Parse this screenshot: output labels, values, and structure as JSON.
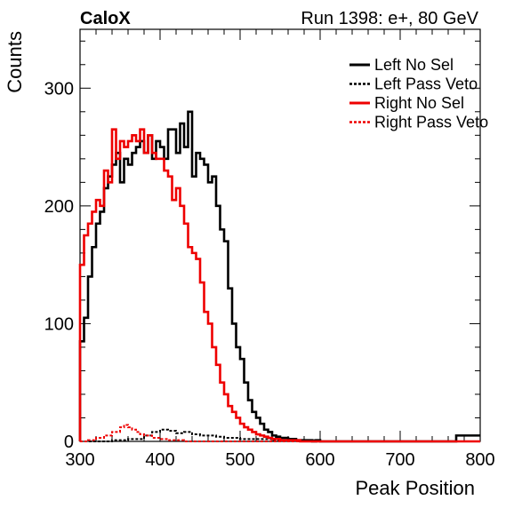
{
  "header": {
    "left": "CaloX",
    "right": "Run 1398: e+, 80 GeV"
  },
  "chart_data": {
    "type": "line",
    "title": "",
    "xlabel": "Peak Position",
    "ylabel": "Counts",
    "xlim": [
      300,
      800
    ],
    "ylim": [
      0,
      350
    ],
    "xticks": [
      300,
      400,
      500,
      600,
      700,
      800
    ],
    "yticks": [
      0,
      100,
      200,
      300
    ],
    "grid": false,
    "legend_position": "top-right",
    "step": "histogram",
    "series": [
      {
        "name": "Left No Sel",
        "color": "#000000",
        "dash": "solid",
        "x": [
          300,
          305,
          310,
          315,
          320,
          325,
          330,
          335,
          340,
          345,
          350,
          355,
          360,
          365,
          370,
          375,
          380,
          385,
          390,
          395,
          400,
          405,
          410,
          415,
          420,
          425,
          430,
          435,
          440,
          445,
          450,
          455,
          460,
          465,
          470,
          475,
          480,
          485,
          490,
          495,
          500,
          505,
          510,
          515,
          520,
          525,
          530,
          535,
          540,
          545,
          550,
          555,
          560,
          565,
          570,
          575,
          580,
          585,
          590,
          595,
          600,
          650,
          700,
          750,
          770
        ],
        "values": [
          85,
          105,
          140,
          165,
          185,
          195,
          215,
          225,
          235,
          245,
          220,
          240,
          235,
          245,
          250,
          255,
          245,
          260,
          240,
          255,
          250,
          240,
          265,
          265,
          245,
          270,
          250,
          280,
          225,
          245,
          240,
          235,
          220,
          225,
          200,
          180,
          170,
          130,
          100,
          80,
          70,
          50,
          35,
          25,
          20,
          15,
          10,
          8,
          5,
          4,
          3,
          3,
          2,
          2,
          1,
          1,
          1,
          1,
          0,
          1,
          0,
          0,
          0,
          0,
          5
        ]
      },
      {
        "name": "Left Pass Veto",
        "color": "#000000",
        "dash": "dotted",
        "x": [
          300,
          320,
          340,
          360,
          380,
          390,
          400,
          410,
          420,
          430,
          440,
          450,
          460,
          470,
          480,
          490,
          500,
          520,
          540,
          560,
          580,
          600,
          700,
          800
        ],
        "values": [
          0,
          0,
          1,
          2,
          5,
          8,
          10,
          9,
          7,
          8,
          6,
          5,
          5,
          4,
          3,
          3,
          2,
          2,
          1,
          1,
          1,
          0,
          0,
          0
        ]
      },
      {
        "name": "Right No Sel",
        "color": "#ee0000",
        "dash": "solid",
        "x": [
          300,
          305,
          310,
          315,
          320,
          325,
          330,
          335,
          340,
          345,
          350,
          355,
          360,
          365,
          370,
          375,
          380,
          385,
          390,
          395,
          400,
          405,
          410,
          415,
          420,
          425,
          430,
          435,
          440,
          445,
          450,
          455,
          460,
          465,
          470,
          475,
          480,
          485,
          490,
          495,
          500,
          505,
          510,
          515,
          520,
          525,
          530,
          535,
          540,
          545,
          550,
          555,
          560,
          565,
          570,
          575,
          580,
          585,
          590,
          595,
          600,
          650,
          700,
          750
        ],
        "values": [
          150,
          175,
          185,
          195,
          205,
          200,
          230,
          220,
          265,
          240,
          255,
          250,
          255,
          260,
          255,
          265,
          245,
          260,
          245,
          240,
          240,
          230,
          225,
          205,
          215,
          200,
          185,
          165,
          160,
          155,
          135,
          110,
          100,
          80,
          65,
          50,
          40,
          30,
          25,
          20,
          15,
          12,
          10,
          8,
          6,
          5,
          4,
          3,
          2,
          2,
          1,
          1,
          1,
          1,
          1,
          0,
          0,
          0,
          0,
          0,
          0,
          0,
          0,
          0
        ]
      },
      {
        "name": "Right Pass Veto",
        "color": "#ee0000",
        "dash": "dotted",
        "x": [
          300,
          310,
          320,
          330,
          340,
          350,
          355,
          360,
          365,
          370,
          375,
          380,
          390,
          400,
          410,
          420,
          430,
          440,
          460,
          480,
          500,
          600,
          700,
          800
        ],
        "values": [
          0,
          1,
          3,
          5,
          8,
          12,
          14,
          12,
          10,
          8,
          6,
          5,
          3,
          2,
          1,
          1,
          0,
          0,
          0,
          0,
          0,
          0,
          0,
          0
        ]
      }
    ]
  }
}
